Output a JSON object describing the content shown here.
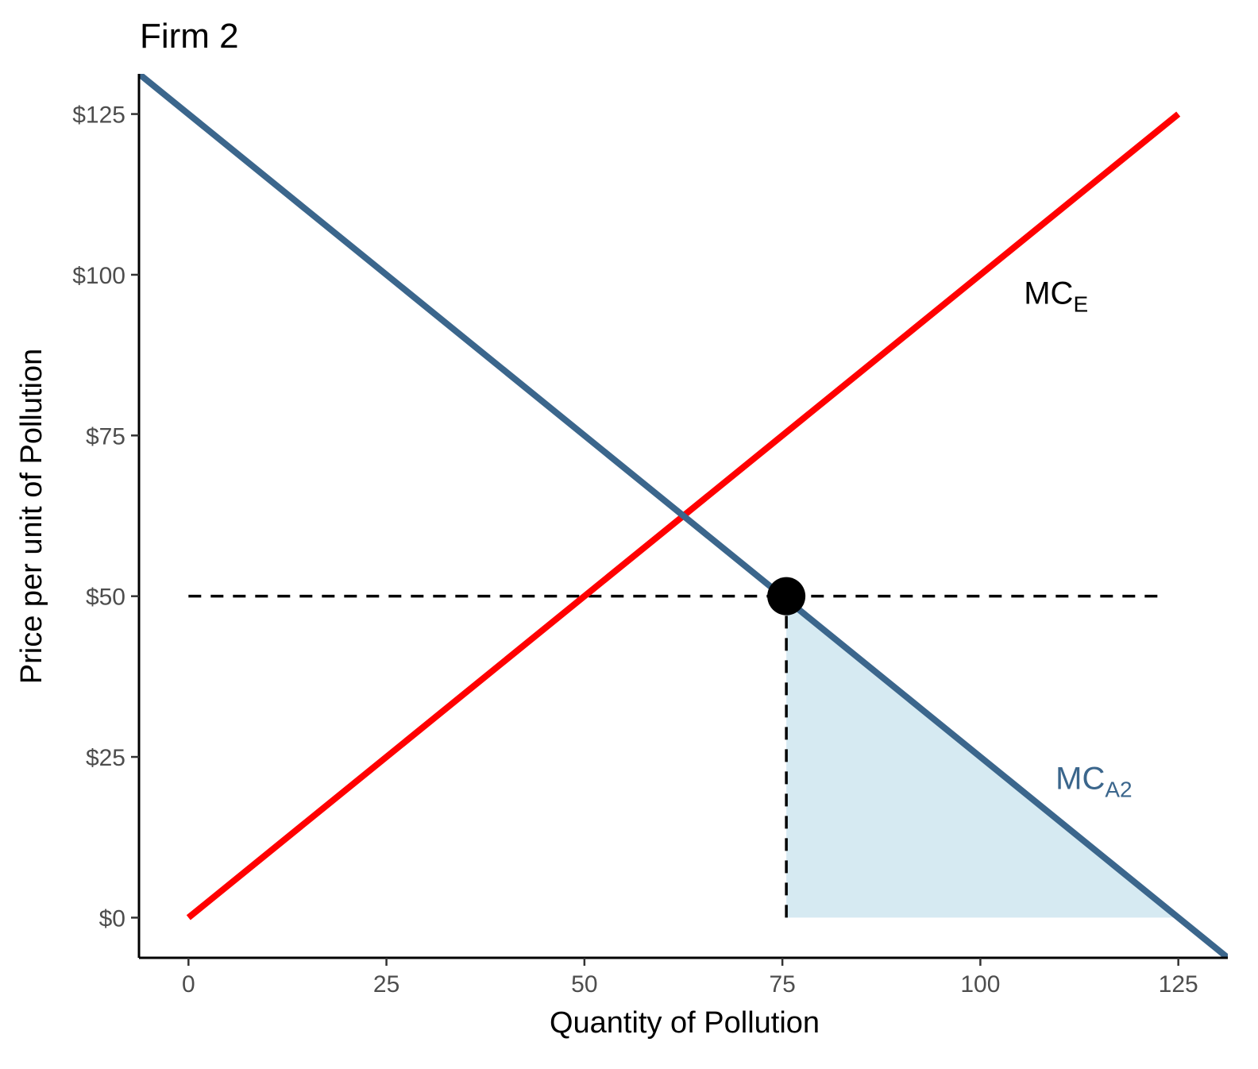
{
  "chart_data": {
    "type": "line",
    "title": "Firm 2",
    "xlabel": "Quantity of Pollution",
    "ylabel": "Price per unit of Pollution",
    "xlim": [
      -6.25,
      131.25
    ],
    "ylim": [
      -6.25,
      131.25
    ],
    "x_ticks": [
      {
        "value": 0,
        "label": "0"
      },
      {
        "value": 25,
        "label": "25"
      },
      {
        "value": 50,
        "label": "50"
      },
      {
        "value": 75,
        "label": "75"
      },
      {
        "value": 100,
        "label": "100"
      },
      {
        "value": 125,
        "label": "125"
      }
    ],
    "y_ticks": [
      {
        "value": 0,
        "label": "$0"
      },
      {
        "value": 25,
        "label": "$25"
      },
      {
        "value": 50,
        "label": "$50"
      },
      {
        "value": 75,
        "label": "$75"
      },
      {
        "value": 100,
        "label": "$100"
      },
      {
        "value": 125,
        "label": "$125"
      }
    ],
    "grid": false,
    "series": [
      {
        "name_main": "MC",
        "name_sub": "E",
        "color": "#ff0000",
        "label_color": "#000000",
        "label_position": {
          "x": 105.5,
          "y": 95.5
        },
        "x": [
          0,
          125
        ],
        "y": [
          0,
          125
        ]
      },
      {
        "name_main": "MC",
        "name_sub": "A2",
        "color": "#3b668c",
        "label_color": "#3b668c",
        "label_position": {
          "x": 109.5,
          "y": 20
        },
        "x": [
          -6.25,
          131.25
        ],
        "y": [
          131.25,
          -6.25
        ]
      }
    ],
    "shaded_area": {
      "color": "#d6eaf2",
      "x": [
        75.5,
        75.5,
        125
      ],
      "y": [
        0,
        49.5,
        0
      ]
    },
    "reference_lines": [
      {
        "type": "horizontal",
        "y": 50,
        "x_from": 0,
        "x_to": 123.5,
        "style": "dashed",
        "color": "#000000"
      },
      {
        "type": "vertical",
        "x": 75.5,
        "y_from": 0,
        "y_to": 50,
        "style": "dashed",
        "color": "#000000"
      }
    ],
    "point": {
      "x": 75.5,
      "y": 50,
      "color": "#000000"
    }
  }
}
